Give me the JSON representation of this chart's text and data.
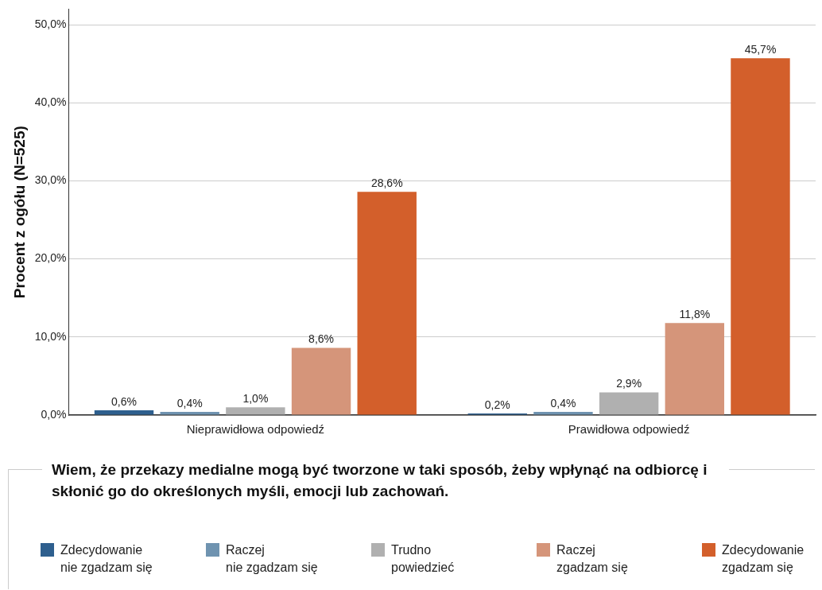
{
  "chart_data": {
    "type": "bar",
    "ylabel": "Procent z ogółu (N=525)",
    "legend_title": "Wiem, że przekazy medialne mogą być tworzone w taki sposób, żeby wpłynąć na odbiorcę i skłonić go do określonych myśli, emocji lub zachowań.",
    "categories": [
      "Nieprawidłowa odpowiedź",
      "Prawidłowa odpowiedź"
    ],
    "series": [
      {
        "name": "Zdecydowanie\nnie zgadzam się",
        "color": "#2e5f8e",
        "values": [
          0.6,
          0.2
        ],
        "value_labels": [
          "0,6%",
          "0,2%"
        ]
      },
      {
        "name": "Raczej\nnie zgadzam się",
        "color": "#6f93b0",
        "values": [
          0.4,
          0.4
        ],
        "value_labels": [
          "0,4%",
          "0,4%"
        ]
      },
      {
        "name": "Trudno\npowiedzieć",
        "color": "#b0b0b0",
        "values": [
          1.0,
          2.9
        ],
        "value_labels": [
          "1,0%",
          "2,9%"
        ]
      },
      {
        "name": "Raczej\nzgadzam się",
        "color": "#d5957a",
        "values": [
          8.6,
          11.8
        ],
        "value_labels": [
          "8,6%",
          "11,8%"
        ]
      },
      {
        "name": "Zdecydowanie\nzgadzam się",
        "color": "#d35f2b",
        "values": [
          28.6,
          45.7
        ],
        "value_labels": [
          "28,6%",
          "45,7%"
        ]
      }
    ],
    "ylim": [
      0,
      52
    ],
    "yticks": [
      {
        "value": 0,
        "label": "0,0%"
      },
      {
        "value": 10,
        "label": "10,0%"
      },
      {
        "value": 20,
        "label": "20,0%"
      },
      {
        "value": 30,
        "label": "30,0%"
      },
      {
        "value": 40,
        "label": "40,0%"
      },
      {
        "value": 50,
        "label": "50,0%"
      }
    ],
    "grid": "y",
    "legend": "bottom"
  }
}
